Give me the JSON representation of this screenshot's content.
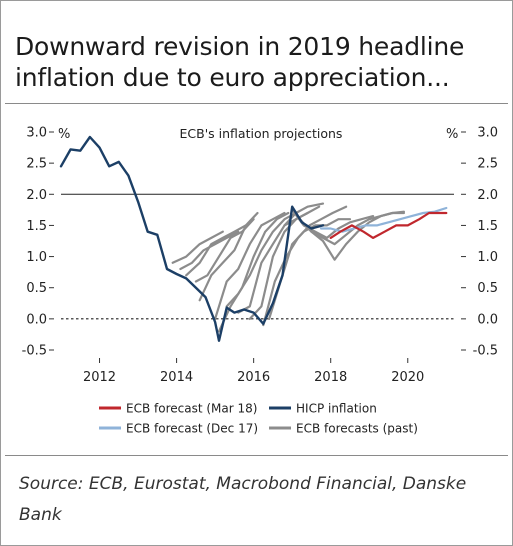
{
  "title": "Downward revision in 2019 headline inflation due to euro appreciation...",
  "source": "Source: ECB, Eurostat, Macrobond Financial, Danske Bank",
  "chart_data": {
    "type": "line",
    "title": "ECB's inflation projections",
    "unit_left": "%",
    "unit_right": "%",
    "x_ticks": [
      "2012",
      "2014",
      "2016",
      "2018",
      "2020"
    ],
    "y_ticks": [
      "3.0",
      "2.5",
      "2.0",
      "1.5",
      "1.0",
      "0.5",
      "0.0",
      "-0.5"
    ],
    "ylim": [
      -0.5,
      3.0
    ],
    "xlim": [
      2011.0,
      2021.2
    ],
    "reference_lines": [
      {
        "y": 2.0,
        "style": "solid"
      },
      {
        "y": 0.0,
        "style": "dashed"
      }
    ],
    "legend": [
      {
        "label": "ECB forecast (Mar 18)",
        "color": "#c0272d"
      },
      {
        "label": "HICP inflation",
        "color": "#1c3f66"
      },
      {
        "label": "ECB forecast (Dec 17)",
        "color": "#8fb3d9"
      },
      {
        "label": "ECB forecasts (past)",
        "color": "#8c8c8c"
      }
    ],
    "series": [
      {
        "name": "ECB forecasts (past)",
        "color": "#8c8c8c",
        "width": 2.2,
        "lines": [
          [
            [
              2013.9,
              0.9
            ],
            [
              2014.25,
              1.0
            ],
            [
              2014.6,
              1.2
            ],
            [
              2014.9,
              1.3
            ],
            [
              2015.2,
              1.4
            ]
          ],
          [
            [
              2014.1,
              0.8
            ],
            [
              2014.4,
              0.9
            ],
            [
              2014.7,
              1.1
            ],
            [
              2015.0,
              1.2
            ],
            [
              2015.3,
              1.3
            ],
            [
              2015.6,
              1.4
            ]
          ],
          [
            [
              2014.25,
              0.7
            ],
            [
              2014.6,
              0.9
            ],
            [
              2014.9,
              1.2
            ],
            [
              2015.2,
              1.3
            ],
            [
              2015.5,
              1.4
            ],
            [
              2015.8,
              1.5
            ]
          ],
          [
            [
              2014.5,
              0.6
            ],
            [
              2014.8,
              0.7
            ],
            [
              2015.1,
              1.0
            ],
            [
              2015.4,
              1.3
            ],
            [
              2015.7,
              1.4
            ],
            [
              2016.0,
              1.6
            ]
          ],
          [
            [
              2014.6,
              0.3
            ],
            [
              2014.9,
              0.7
            ],
            [
              2015.2,
              0.9
            ],
            [
              2015.5,
              1.1
            ],
            [
              2015.8,
              1.5
            ],
            [
              2016.1,
              1.7
            ]
          ],
          [
            [
              2015.0,
              0.0
            ],
            [
              2015.3,
              0.6
            ],
            [
              2015.6,
              0.8
            ],
            [
              2015.9,
              1.2
            ],
            [
              2016.2,
              1.5
            ],
            [
              2016.5,
              1.6
            ],
            [
              2016.8,
              1.7
            ]
          ],
          [
            [
              2015.1,
              -0.2
            ],
            [
              2015.4,
              0.2
            ],
            [
              2015.7,
              0.5
            ],
            [
              2016.0,
              1.0
            ],
            [
              2016.3,
              1.4
            ],
            [
              2016.6,
              1.6
            ],
            [
              2016.9,
              1.7
            ]
          ],
          [
            [
              2015.3,
              0.2
            ],
            [
              2015.6,
              0.4
            ],
            [
              2015.9,
              0.7
            ],
            [
              2016.2,
              1.1
            ],
            [
              2016.5,
              1.4
            ],
            [
              2016.8,
              1.6
            ],
            [
              2017.1,
              1.7
            ]
          ],
          [
            [
              2015.6,
              0.1
            ],
            [
              2015.9,
              0.2
            ],
            [
              2016.2,
              0.9
            ],
            [
              2016.5,
              1.2
            ],
            [
              2016.8,
              1.5
            ],
            [
              2017.1,
              1.6
            ],
            [
              2017.4,
              1.7
            ]
          ],
          [
            [
              2015.9,
              0.0
            ],
            [
              2016.2,
              0.2
            ],
            [
              2016.5,
              1.0
            ],
            [
              2016.8,
              1.4
            ],
            [
              2017.1,
              1.6
            ],
            [
              2017.4,
              1.7
            ],
            [
              2017.7,
              1.8
            ]
          ],
          [
            [
              2016.25,
              -0.1
            ],
            [
              2016.55,
              0.6
            ],
            [
              2016.85,
              1.0
            ],
            [
              2017.15,
              1.3
            ],
            [
              2017.45,
              1.5
            ],
            [
              2017.75,
              1.6
            ],
            [
              2018.05,
              1.7
            ],
            [
              2018.4,
              1.8
            ]
          ],
          [
            [
              2016.4,
              0.0
            ],
            [
              2016.7,
              0.6
            ],
            [
              2017.0,
              1.2
            ],
            [
              2017.3,
              1.4
            ],
            [
              2017.6,
              1.5
            ],
            [
              2017.9,
              1.5
            ],
            [
              2018.2,
              1.6
            ],
            [
              2018.5,
              1.6
            ]
          ],
          [
            [
              2016.8,
              1.5
            ],
            [
              2017.1,
              1.7
            ],
            [
              2017.4,
              1.8
            ],
            [
              2017.8,
              1.85
            ]
          ],
          [
            [
              2017.0,
              1.75
            ],
            [
              2017.3,
              1.5
            ],
            [
              2017.6,
              1.4
            ],
            [
              2017.9,
              1.3
            ],
            [
              2018.2,
              1.45
            ],
            [
              2018.5,
              1.55
            ],
            [
              2018.8,
              1.6
            ],
            [
              2019.1,
              1.65
            ]
          ],
          [
            [
              2017.2,
              1.6
            ],
            [
              2017.5,
              1.4
            ],
            [
              2017.8,
              1.25
            ],
            [
              2018.1,
              0.95
            ],
            [
              2018.4,
              1.2
            ],
            [
              2018.7,
              1.4
            ],
            [
              2019.0,
              1.55
            ],
            [
              2019.3,
              1.65
            ],
            [
              2019.6,
              1.7
            ],
            [
              2019.9,
              1.72
            ]
          ],
          [
            [
              2017.5,
              1.4
            ],
            [
              2017.8,
              1.3
            ],
            [
              2018.1,
              1.2
            ],
            [
              2018.4,
              1.35
            ],
            [
              2018.7,
              1.5
            ],
            [
              2019.0,
              1.6
            ],
            [
              2019.3,
              1.65
            ],
            [
              2019.6,
              1.7
            ],
            [
              2019.9,
              1.7
            ]
          ]
        ]
      },
      {
        "name": "ECB forecast (Dec 17)",
        "color": "#8fb3d9",
        "width": 2.2,
        "lines": [
          [
            [
              2017.75,
              1.45
            ],
            [
              2018.0,
              1.45
            ],
            [
              2018.3,
              1.4
            ],
            [
              2018.6,
              1.45
            ],
            [
              2018.9,
              1.5
            ],
            [
              2019.2,
              1.5
            ],
            [
              2019.5,
              1.55
            ],
            [
              2019.8,
              1.6
            ],
            [
              2020.1,
              1.65
            ],
            [
              2020.4,
              1.7
            ],
            [
              2020.7,
              1.72
            ],
            [
              2021.0,
              1.78
            ]
          ]
        ]
      },
      {
        "name": "ECB forecast (Mar 18)",
        "color": "#c0272d",
        "width": 2.2,
        "lines": [
          [
            [
              2018.0,
              1.3
            ],
            [
              2018.25,
              1.4
            ],
            [
              2018.55,
              1.5
            ],
            [
              2018.85,
              1.4
            ],
            [
              2019.1,
              1.3
            ],
            [
              2019.4,
              1.4
            ],
            [
              2019.7,
              1.5
            ],
            [
              2020.0,
              1.5
            ],
            [
              2020.3,
              1.6
            ],
            [
              2020.55,
              1.7
            ],
            [
              2020.8,
              1.7
            ],
            [
              2021.0,
              1.7
            ]
          ]
        ]
      },
      {
        "name": "HICP inflation",
        "color": "#1c3f66",
        "width": 2.4,
        "lines": [
          [
            [
              2011.0,
              2.45
            ],
            [
              2011.25,
              2.72
            ],
            [
              2011.5,
              2.7
            ],
            [
              2011.75,
              2.92
            ],
            [
              2012.0,
              2.75
            ],
            [
              2012.25,
              2.45
            ],
            [
              2012.5,
              2.52
            ],
            [
              2012.75,
              2.3
            ],
            [
              2013.0,
              1.88
            ],
            [
              2013.25,
              1.4
            ],
            [
              2013.5,
              1.35
            ],
            [
              2013.75,
              0.8
            ],
            [
              2014.0,
              0.72
            ],
            [
              2014.25,
              0.65
            ],
            [
              2014.5,
              0.5
            ],
            [
              2014.75,
              0.35
            ],
            [
              2015.0,
              -0.05
            ],
            [
              2015.1,
              -0.35
            ],
            [
              2015.3,
              0.18
            ],
            [
              2015.5,
              0.1
            ],
            [
              2015.75,
              0.15
            ],
            [
              2016.0,
              0.1
            ],
            [
              2016.25,
              -0.08
            ],
            [
              2016.5,
              0.25
            ],
            [
              2016.75,
              0.7
            ],
            [
              2017.0,
              1.8
            ],
            [
              2017.25,
              1.55
            ],
            [
              2017.5,
              1.45
            ],
            [
              2017.8,
              1.5
            ]
          ]
        ]
      }
    ]
  }
}
